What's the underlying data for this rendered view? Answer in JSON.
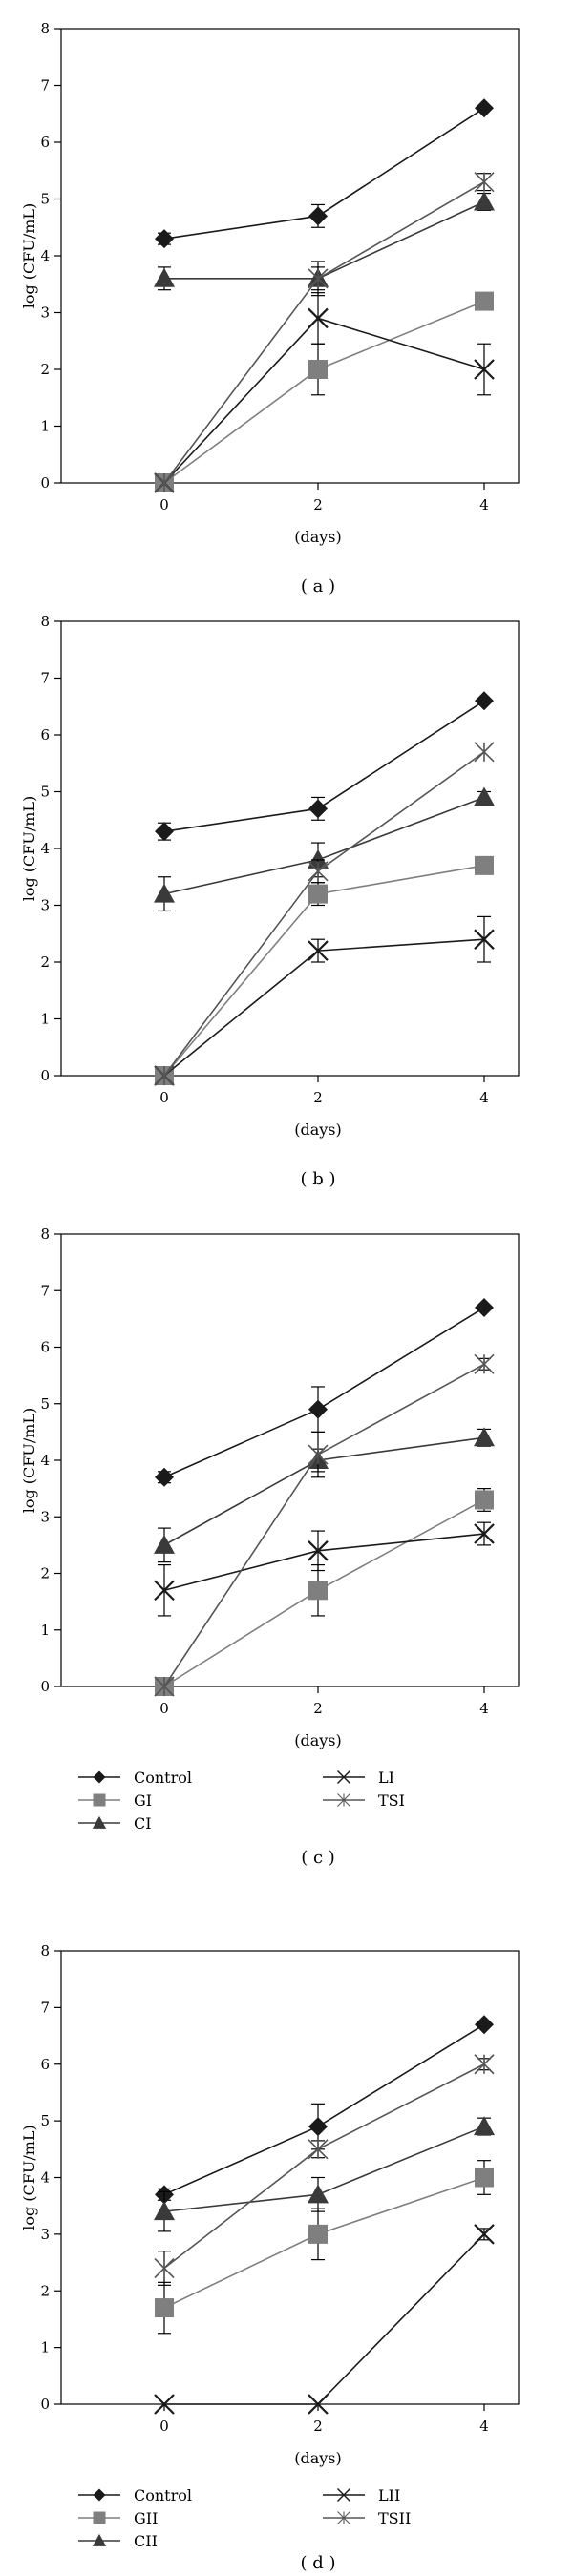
{
  "series_styles": {
    "Control": {
      "marker": "diamond",
      "color": "#1a1a1a"
    },
    "GI": {
      "marker": "square",
      "color": "#7f7f7f"
    },
    "CI": {
      "marker": "triangle",
      "color": "#3a3a3a"
    },
    "LI": {
      "marker": "x",
      "color": "#1a1a1a"
    },
    "TSI": {
      "marker": "asterisk",
      "color": "#555555"
    },
    "GII": {
      "marker": "square",
      "color": "#7f7f7f"
    },
    "CII": {
      "marker": "triangle",
      "color": "#3a3a3a"
    },
    "LII": {
      "marker": "x",
      "color": "#1a1a1a"
    },
    "TSII": {
      "marker": "asterisk",
      "color": "#555555"
    }
  },
  "chart_data": [
    {
      "type": "line",
      "panel_label": "( a )",
      "xlabel": "(days)",
      "ylabel": "log (CFU/mL)",
      "x": [
        0,
        2,
        4
      ],
      "x_ticks": [
        "0",
        "2",
        "4"
      ],
      "ylim": [
        0,
        8
      ],
      "y_ticks": [
        "0",
        "1",
        "2",
        "3",
        "4",
        "5",
        "6",
        "7",
        "8"
      ],
      "series": [
        {
          "name": "Control",
          "values": [
            4.3,
            4.7,
            6.6
          ],
          "errors": [
            0.1,
            0.2,
            0
          ]
        },
        {
          "name": "GI",
          "values": [
            0,
            2.0,
            3.2
          ],
          "errors": [
            0,
            0.45,
            0
          ]
        },
        {
          "name": "CI",
          "values": [
            3.6,
            3.6,
            4.95
          ],
          "errors": [
            0.2,
            0.3,
            0.15
          ]
        },
        {
          "name": "LI",
          "values": [
            0,
            2.9,
            2.0
          ],
          "errors": [
            0,
            0.45,
            0.45
          ]
        },
        {
          "name": "TSI",
          "values": [
            0,
            3.6,
            5.3
          ],
          "errors": [
            0,
            0.2,
            0.15
          ]
        }
      ],
      "legend": null
    },
    {
      "type": "line",
      "panel_label": "( b )",
      "xlabel": "(days)",
      "ylabel": "log (CFU/mL)",
      "x": [
        0,
        2,
        4
      ],
      "x_ticks": [
        "0",
        "2",
        "4"
      ],
      "ylim": [
        0,
        8
      ],
      "y_ticks": [
        "0",
        "1",
        "2",
        "3",
        "4",
        "5",
        "6",
        "7",
        "8"
      ],
      "series": [
        {
          "name": "Control",
          "values": [
            4.3,
            4.7,
            6.6
          ],
          "errors": [
            0.15,
            0.2,
            0
          ]
        },
        {
          "name": "GI",
          "values": [
            0,
            3.2,
            3.7
          ],
          "errors": [
            0,
            0.2,
            0
          ]
        },
        {
          "name": "CI",
          "values": [
            3.2,
            3.8,
            4.9
          ],
          "errors": [
            0.3,
            0.3,
            0.1
          ]
        },
        {
          "name": "LI",
          "values": [
            0,
            2.2,
            2.4
          ],
          "errors": [
            0,
            0.2,
            0.4
          ]
        },
        {
          "name": "TSI",
          "values": [
            0,
            3.6,
            5.7
          ],
          "errors": [
            0,
            0.2,
            0
          ]
        }
      ],
      "legend": null
    },
    {
      "type": "line",
      "panel_label": "( c )",
      "xlabel": "(days)",
      "ylabel": "log (CFU/mL)",
      "x": [
        0,
        2,
        4
      ],
      "x_ticks": [
        "0",
        "2",
        "4"
      ],
      "ylim": [
        0,
        8
      ],
      "y_ticks": [
        "0",
        "1",
        "2",
        "3",
        "4",
        "5",
        "6",
        "7",
        "8"
      ],
      "series": [
        {
          "name": "Control",
          "values": [
            3.7,
            4.9,
            6.7
          ],
          "errors": [
            0.1,
            0.4,
            0
          ]
        },
        {
          "name": "GI",
          "values": [
            0,
            1.7,
            3.3
          ],
          "errors": [
            0,
            0.45,
            0.2
          ]
        },
        {
          "name": "CI",
          "values": [
            2.5,
            4.0,
            4.4
          ],
          "errors": [
            0.3,
            0.2,
            0.15
          ]
        },
        {
          "name": "LI",
          "values": [
            1.7,
            2.4,
            2.7
          ],
          "errors": [
            0.45,
            0.35,
            0.2
          ]
        },
        {
          "name": "TSI",
          "values": [
            0,
            4.1,
            5.7
          ],
          "errors": [
            0,
            0.4,
            0.1
          ]
        }
      ],
      "legend": [
        [
          "Control",
          "LI"
        ],
        [
          "GI",
          "TSI"
        ],
        [
          "CI"
        ]
      ]
    },
    {
      "type": "line",
      "panel_label": "( d )",
      "xlabel": "(days)",
      "ylabel": "log (CFU/mL)",
      "x": [
        0,
        2,
        4
      ],
      "x_ticks": [
        "0",
        "2",
        "4"
      ],
      "ylim": [
        0,
        8
      ],
      "y_ticks": [
        "0",
        "1",
        "2",
        "3",
        "4",
        "5",
        "6",
        "7",
        "8"
      ],
      "series": [
        {
          "name": "Control",
          "values": [
            3.7,
            4.9,
            6.7
          ],
          "errors": [
            0.1,
            0.4,
            0
          ]
        },
        {
          "name": "GII",
          "values": [
            1.7,
            3.0,
            4.0
          ],
          "errors": [
            0.45,
            0.45,
            0.3
          ]
        },
        {
          "name": "CII",
          "values": [
            3.4,
            3.7,
            4.9
          ],
          "errors": [
            0.35,
            0.3,
            0.15
          ]
        },
        {
          "name": "LII",
          "values": [
            0,
            0,
            3.0
          ],
          "errors": [
            0,
            0,
            0.1
          ]
        },
        {
          "name": "TSII",
          "values": [
            2.4,
            4.5,
            6.0
          ],
          "errors": [
            0.3,
            0.15,
            0.1
          ]
        }
      ],
      "legend": [
        [
          "Control",
          "LII"
        ],
        [
          "GII",
          "TSII"
        ],
        [
          "CII"
        ]
      ]
    }
  ]
}
